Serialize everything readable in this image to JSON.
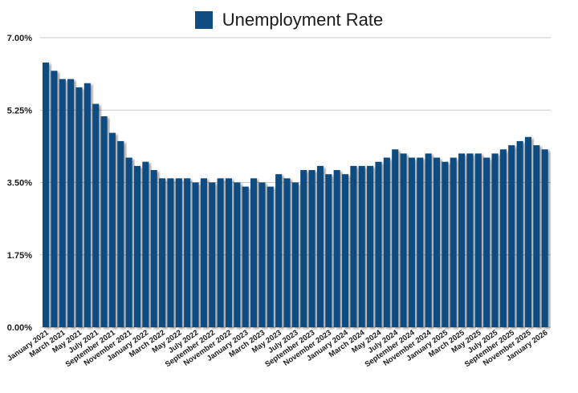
{
  "chart_data": {
    "type": "bar",
    "title": "",
    "xlabel": "",
    "ylabel": "",
    "ylim": [
      0,
      7
    ],
    "y_ticks": [
      "0.00%",
      "1.75%",
      "3.50%",
      "5.25%",
      "7.00%"
    ],
    "y_tick_values": [
      0,
      1.75,
      3.5,
      5.25,
      7
    ],
    "grid": true,
    "legend": "top-center",
    "bar_color": "#0f4c81",
    "gridline_color": "#c8c8c8",
    "categories": [
      "January 2021",
      "February 2021",
      "March 2021",
      "April 2021",
      "May 2021",
      "June 2021",
      "July 2021",
      "August 2021",
      "September 2021",
      "October 2021",
      "November 2021",
      "December 2021",
      "January 2022",
      "February 2022",
      "March 2022",
      "April 2022",
      "May 2022",
      "June 2022",
      "July 2022",
      "August 2022",
      "September 2022",
      "October 2022",
      "November 2022",
      "December 2022",
      "January 2023",
      "February 2023",
      "March 2023",
      "April 2023",
      "May 2023",
      "June 2023",
      "July 2023",
      "August 2023",
      "September 2023",
      "October 2023",
      "November 2023",
      "December 2023",
      "January 2024",
      "February 2024",
      "March 2024",
      "April 2024",
      "May 2024",
      "June 2024",
      "July 2024",
      "August 2024",
      "September 2024",
      "October 2024",
      "November 2024",
      "December 2024",
      "January 2025",
      "February 2025",
      "March 2025",
      "April 2025",
      "May 2025",
      "June 2025",
      "July 2025",
      "August 2025",
      "September 2025",
      "October 2025",
      "November 2025",
      "December 2025",
      "January 2026"
    ],
    "x_tick_labels": [
      "January 2021",
      "March 2021",
      "May 2021",
      "July 2021",
      "September 2021",
      "November 2021",
      "January 2022",
      "March 2022",
      "May 2022",
      "July 2022",
      "September 2022",
      "November 2022",
      "January 2023",
      "March 2023",
      "May 2023",
      "July 2023",
      "September 2023",
      "November 2023",
      "January 2024",
      "March 2024",
      "May 2024",
      "July 2024",
      "September 2024",
      "November 2024",
      "January 2025",
      "March 2025",
      "May 2025",
      "July 2025",
      "September 2025",
      "November 2025",
      "January 2026"
    ],
    "series": [
      {
        "name": "Unemployment Rate",
        "values": [
          6.4,
          6.2,
          6.0,
          6.0,
          5.8,
          5.9,
          5.4,
          5.1,
          4.7,
          4.5,
          4.1,
          3.9,
          4.0,
          3.8,
          3.6,
          3.6,
          3.6,
          3.6,
          3.5,
          3.6,
          3.5,
          3.6,
          3.6,
          3.5,
          3.4,
          3.6,
          3.5,
          3.4,
          3.7,
          3.6,
          3.5,
          3.8,
          3.8,
          3.9,
          3.7,
          3.8,
          3.7,
          3.9,
          3.9,
          3.9,
          4.0,
          4.1,
          4.3,
          4.2,
          4.1,
          4.1,
          4.2,
          4.1,
          4.0,
          4.1,
          4.2,
          4.2,
          4.2,
          4.1,
          4.2,
          4.3,
          4.4,
          4.5,
          4.6,
          4.4,
          4.3
        ]
      }
    ]
  }
}
